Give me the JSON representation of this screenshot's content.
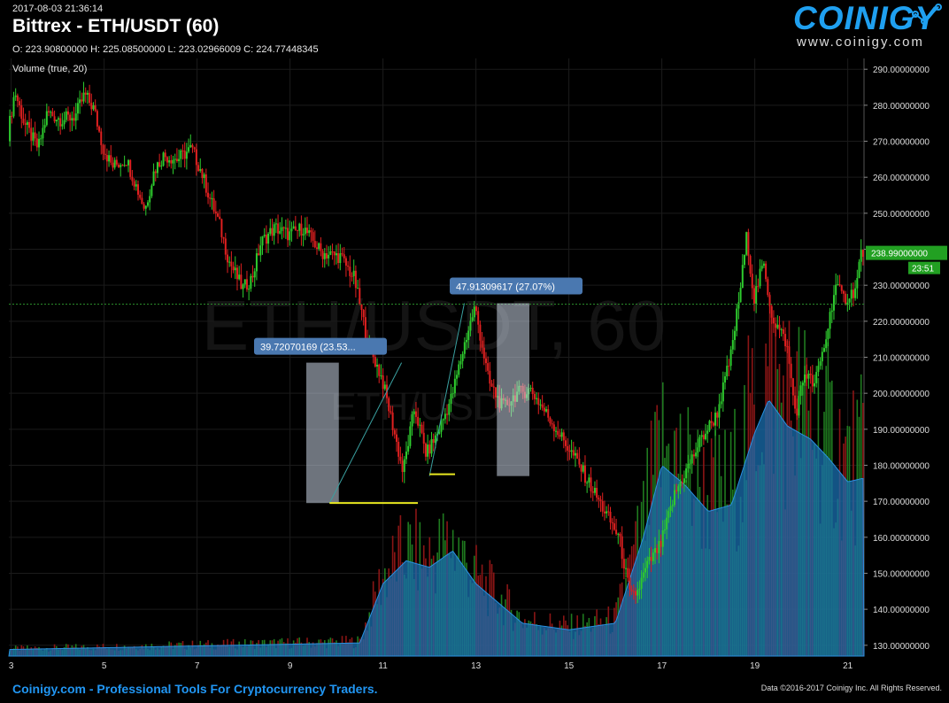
{
  "header": {
    "timestamp": "2017-08-03 21:36:14",
    "title": "Bittrex - ETH/USDT (60)",
    "ohlc": "O: 223.90800000 H: 225.08500000 L: 223.02966009 C: 224.77448345",
    "volume_label": "Volume (true, 20)"
  },
  "logo": {
    "name": "COINIGY",
    "url": "www.coinigy.com",
    "icon": "chart-line-logo-icon"
  },
  "watermark": {
    "line1": "ETH/USDT, 60",
    "line2": "ETH/USD"
  },
  "footer": {
    "left": "Coinigy.com - Professional Tools For Cryptocurrency Traders.",
    "right": "Data ©2016-2017 Coinigy Inc. All Rights Reserved."
  },
  "colors": {
    "up": "#2ecc2e",
    "down": "#e02020",
    "volume_fill": "#1a6fb0",
    "annotation": "#4a78b0",
    "measure_box": "#c8d4e4"
  },
  "chart_data": {
    "type": "candlestick",
    "ylim": [
      127,
      293
    ],
    "y_ticks": [
      130,
      140,
      150,
      160,
      170,
      180,
      190,
      200,
      210,
      220,
      230,
      240,
      250,
      260,
      270,
      280,
      290
    ],
    "y_tick_labels": [
      "130.00000000",
      "140.00000000",
      "150.00000000",
      "160.00000000",
      "170.00000000",
      "180.00000000",
      "190.00000000",
      "200.00000000",
      "210.00000000",
      "220.00000000",
      "230.00000000",
      "240.00000000",
      "250.00000000",
      "260.00000000",
      "270.00000000",
      "280.00000000",
      "290.00000000"
    ],
    "x_range_days": [
      2.95,
      21.35
    ],
    "x_ticks": [
      3,
      5,
      7,
      9,
      11,
      13,
      15,
      17,
      19,
      21
    ],
    "x_tick_labels": [
      "3",
      "5",
      "7",
      "9",
      "11",
      "13",
      "15",
      "17",
      "19",
      "21"
    ],
    "price_path": [
      [
        2.95,
        272
      ],
      [
        3.1,
        284
      ],
      [
        3.3,
        275
      ],
      [
        3.6,
        268
      ],
      [
        3.8,
        278
      ],
      [
        4.1,
        276
      ],
      [
        4.4,
        277
      ],
      [
        4.6,
        283
      ],
      [
        4.8,
        279
      ],
      [
        5.0,
        268
      ],
      [
        5.2,
        263
      ],
      [
        5.5,
        265
      ],
      [
        5.7,
        258
      ],
      [
        5.9,
        251
      ],
      [
        6.1,
        262
      ],
      [
        6.3,
        266
      ],
      [
        6.6,
        265
      ],
      [
        6.9,
        268
      ],
      [
        7.1,
        262
      ],
      [
        7.3,
        254
      ],
      [
        7.5,
        247
      ],
      [
        7.7,
        237
      ],
      [
        8.0,
        229
      ],
      [
        8.2,
        232
      ],
      [
        8.4,
        242
      ],
      [
        8.7,
        246
      ],
      [
        9.0,
        244
      ],
      [
        9.3,
        246
      ],
      [
        9.7,
        239
      ],
      [
        10.1,
        238
      ],
      [
        10.4,
        232
      ],
      [
        10.7,
        214
      ],
      [
        11.0,
        204
      ],
      [
        11.25,
        190
      ],
      [
        11.45,
        178
      ],
      [
        11.7,
        196
      ],
      [
        11.95,
        183
      ],
      [
        12.2,
        189
      ],
      [
        12.5,
        199
      ],
      [
        12.8,
        215
      ],
      [
        13.0,
        224
      ],
      [
        13.3,
        203
      ],
      [
        13.6,
        196
      ],
      [
        13.9,
        200
      ],
      [
        14.2,
        201
      ],
      [
        14.6,
        193
      ],
      [
        14.9,
        187
      ],
      [
        15.2,
        181
      ],
      [
        15.5,
        174
      ],
      [
        15.8,
        167
      ],
      [
        16.1,
        160
      ],
      [
        16.35,
        143
      ],
      [
        16.5,
        145
      ],
      [
        16.7,
        152
      ],
      [
        17.0,
        158
      ],
      [
        17.3,
        172
      ],
      [
        17.6,
        180
      ],
      [
        17.9,
        188
      ],
      [
        18.2,
        194
      ],
      [
        18.5,
        210
      ],
      [
        18.7,
        228
      ],
      [
        18.85,
        244
      ],
      [
        19.0,
        226
      ],
      [
        19.2,
        236
      ],
      [
        19.4,
        221
      ],
      [
        19.7,
        214
      ],
      [
        19.9,
        194
      ],
      [
        20.1,
        206
      ],
      [
        20.3,
        202
      ],
      [
        20.55,
        215
      ],
      [
        20.75,
        230
      ],
      [
        20.95,
        226
      ],
      [
        21.2,
        229
      ],
      [
        21.3,
        238.99
      ]
    ],
    "volume_level_path": [
      [
        2.95,
        0.02
      ],
      [
        10.5,
        0.04
      ],
      [
        11.0,
        0.22
      ],
      [
        11.5,
        0.29
      ],
      [
        12.0,
        0.27
      ],
      [
        12.5,
        0.32
      ],
      [
        13.0,
        0.22
      ],
      [
        14.0,
        0.1
      ],
      [
        15.0,
        0.08
      ],
      [
        16.0,
        0.1
      ],
      [
        16.6,
        0.36
      ],
      [
        17.0,
        0.58
      ],
      [
        17.5,
        0.52
      ],
      [
        18.0,
        0.44
      ],
      [
        18.5,
        0.46
      ],
      [
        19.0,
        0.68
      ],
      [
        19.3,
        0.78
      ],
      [
        19.7,
        0.7
      ],
      [
        20.2,
        0.66
      ],
      [
        20.6,
        0.6
      ],
      [
        21.0,
        0.53
      ],
      [
        21.3,
        0.54
      ]
    ],
    "last_price": {
      "value": 238.99,
      "label": "238.99000000",
      "countdown": "23:51"
    },
    "reference_price": 224.77,
    "measurements": [
      {
        "label": "39.72070169 (23.53...",
        "x_range": [
          9.35,
          10.05
        ],
        "y_range": [
          169.5,
          208.5
        ],
        "line_from": [
          9.85,
          169.5
        ],
        "line_to": [
          11.4,
          208.5
        ]
      },
      {
        "label": "47.91309617 (27.07%)",
        "x_range": [
          13.45,
          14.15
        ],
        "y_range": [
          177,
          225
        ],
        "line_from": [
          12.0,
          177
        ],
        "line_to": [
          12.75,
          225
        ]
      }
    ],
    "support_lines": [
      {
        "x": [
          9.85,
          11.75
        ],
        "y": 169.5
      },
      {
        "x": [
          12.0,
          12.55
        ],
        "y": 177.5
      }
    ]
  }
}
